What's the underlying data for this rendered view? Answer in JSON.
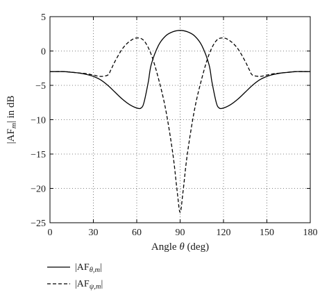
{
  "chart_data": {
    "type": "line",
    "title": "",
    "xlabel_main": "Angle ",
    "xlabel_symbol": "θ",
    "xlabel_unit": " (deg)",
    "ylabel_pre": "|AF",
    "ylabel_sub": "m",
    "ylabel_post": "| in dB",
    "xlim": [
      0,
      180
    ],
    "ylim": [
      -25,
      5
    ],
    "xticks": [
      "0",
      "30",
      "60",
      "90",
      "120",
      "150",
      "180"
    ],
    "yticks": [
      "5",
      "0",
      "−5",
      "−10",
      "−15",
      "−20",
      "−25"
    ],
    "grid": true,
    "grid_style": "dotted",
    "legend_position": "bottom-left, below plot",
    "series": [
      {
        "name": "|AFθ,m|",
        "legend_pre": "|AF",
        "legend_sub": "θ,m",
        "legend_post": "|",
        "line_style": "solid",
        "color": "#000000",
        "x": [
          0,
          5,
          10,
          15,
          20,
          25,
          30,
          35,
          40,
          45,
          50,
          55,
          60,
          63,
          65,
          68,
          70,
          75,
          80,
          85,
          90,
          95,
          100,
          105,
          110,
          112,
          115,
          117,
          120,
          125,
          130,
          135,
          140,
          145,
          150,
          155,
          160,
          165,
          170,
          175,
          180
        ],
        "y": [
          -3.0,
          -3.0,
          -3.0,
          -3.1,
          -3.2,
          -3.4,
          -3.7,
          -4.2,
          -5.0,
          -6.0,
          -7.0,
          -7.8,
          -8.3,
          -8.3,
          -7.5,
          -4.5,
          -2.0,
          0.8,
          2.2,
          2.8,
          3.0,
          2.8,
          2.2,
          0.8,
          -2.0,
          -4.5,
          -7.5,
          -8.3,
          -8.3,
          -7.8,
          -7.0,
          -6.0,
          -5.0,
          -4.2,
          -3.7,
          -3.4,
          -3.2,
          -3.1,
          -3.0,
          -3.0,
          -3.0
        ]
      },
      {
        "name": "|AFψ,m|",
        "legend_pre": "|AF",
        "legend_sub": "ψ,m",
        "legend_post": "|",
        "line_style": "dashed",
        "color": "#000000",
        "x": [
          0,
          10,
          20,
          25,
          30,
          35,
          40,
          42,
          45,
          50,
          55,
          60,
          65,
          70,
          75,
          80,
          85,
          88,
          90,
          92,
          95,
          100,
          105,
          110,
          115,
          120,
          125,
          130,
          135,
          138,
          140,
          145,
          150,
          155,
          160,
          170,
          180
        ],
        "y": [
          -3.0,
          -3.0,
          -3.2,
          -3.3,
          -3.5,
          -3.7,
          -3.5,
          -2.8,
          -1.5,
          0.3,
          1.4,
          1.9,
          1.5,
          -0.5,
          -4.0,
          -8.5,
          -15.0,
          -20.5,
          -23.5,
          -20.5,
          -15.0,
          -8.5,
          -4.0,
          -0.5,
          1.5,
          1.9,
          1.4,
          0.3,
          -1.5,
          -2.8,
          -3.5,
          -3.7,
          -3.5,
          -3.3,
          -3.2,
          -3.0,
          -3.0
        ]
      }
    ]
  }
}
